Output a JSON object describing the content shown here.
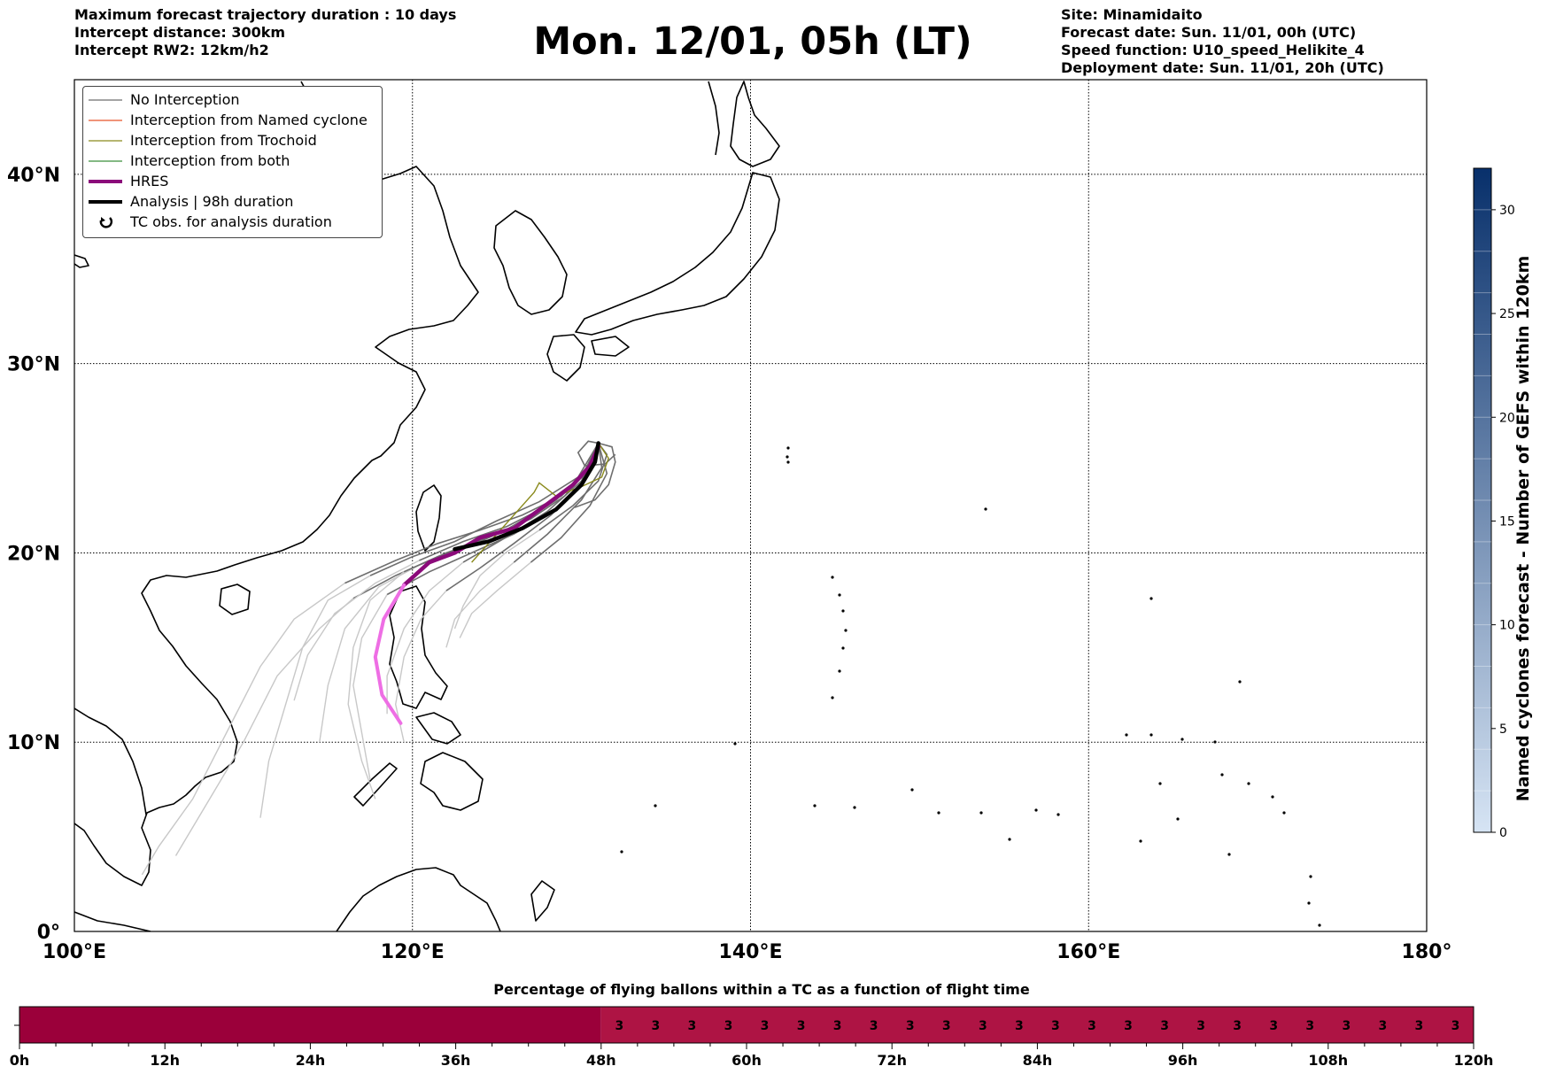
{
  "header": {
    "left": [
      "Maximum forecast trajectory duration : 10 days",
      "Intercept distance: 300km",
      "Intercept RW2: 12km/h2"
    ],
    "title": "Mon. 12/01, 05h (LT)",
    "right": [
      "Site: Minamidaito",
      "Forecast date: Sun. 11/01, 00h (UTC)",
      "Speed function: U10_speed_Helikite_4",
      "Deployment date: Sun. 11/01, 20h (UTC)"
    ]
  },
  "map": {
    "lon_range": [
      100,
      180
    ],
    "lat_range": [
      0,
      45
    ],
    "lon_ticks": [
      "100°E",
      "120°E",
      "140°E",
      "160°E",
      "180°"
    ],
    "lat_ticks": [
      "0°",
      "10°N",
      "20°N",
      "30°N",
      "40°N"
    ],
    "lon_tick_values": [
      100,
      120,
      140,
      160,
      180
    ],
    "lat_tick_values": [
      0,
      10,
      20,
      30,
      40
    ],
    "grid": "dotted"
  },
  "legend": {
    "placement": "top-left",
    "items": [
      {
        "label": "No Interception",
        "color": "#6e6e6e",
        "style": "thin-line"
      },
      {
        "label": "Interception from Named cyclone",
        "color": "#e8552a",
        "style": "thin-line"
      },
      {
        "label": "Interception from Trochoid",
        "color": "#8a8a1c",
        "style": "thin-line"
      },
      {
        "label": "Interception from both",
        "color": "#3a8f3a",
        "style": "thin-line"
      },
      {
        "label": "HRES",
        "color": "#8b0a7a",
        "style": "thick-line"
      },
      {
        "label": "Analysis | 98h duration",
        "color": "#000000",
        "style": "thick-line"
      },
      {
        "label": "TC obs. for analysis duration",
        "color": "#000000",
        "style": "cyclone-symbol"
      }
    ]
  },
  "colorbar": {
    "label": "Named cyclones forecast - Number of GEFS within 120km",
    "ticks": [
      "0",
      "5",
      "10",
      "15",
      "20",
      "25",
      "30"
    ],
    "tick_values": [
      0,
      5,
      10,
      15,
      20,
      25,
      30
    ],
    "min": 0,
    "max": 32,
    "color_low": "#d6e4f4",
    "color_high": "#08306b"
  },
  "chart_data": {
    "type": "line",
    "series": [
      {
        "name": "HRES",
        "color": "#8b0a7a",
        "points": [
          [
            131.0,
            25.6
          ],
          [
            130.5,
            24.6
          ],
          [
            129.5,
            23.6
          ],
          [
            128.0,
            22.6
          ],
          [
            126.0,
            21.3
          ],
          [
            124.0,
            20.8
          ],
          [
            122.5,
            20.0
          ],
          [
            121.0,
            19.5
          ],
          [
            119.5,
            18.3
          ],
          [
            118.3,
            16.5
          ],
          [
            117.8,
            14.5
          ],
          [
            118.2,
            12.5
          ],
          [
            119.3,
            11.0
          ]
        ]
      },
      {
        "name": "Analysis | 98h duration",
        "color": "#000000",
        "points": [
          [
            131.0,
            25.8
          ],
          [
            130.8,
            24.8
          ],
          [
            130.0,
            23.6
          ],
          [
            128.5,
            22.3
          ],
          [
            126.5,
            21.3
          ],
          [
            124.5,
            20.6
          ],
          [
            122.5,
            20.2
          ]
        ]
      }
    ]
  },
  "timeline": {
    "title": "Percentage of flying ballons within a TC as a function of flight time",
    "tick_labels": [
      "0h",
      "12h",
      "24h",
      "36h",
      "48h",
      "60h",
      "72h",
      "84h",
      "96h",
      "108h",
      "120h"
    ],
    "tick_hours": [
      0,
      12,
      24,
      36,
      48,
      60,
      72,
      84,
      96,
      108,
      120
    ],
    "max_hours": 120,
    "dark_segment_end_hours": 48,
    "dark_color": "#9b003a",
    "light_color": "#ae1444",
    "cells_start_hours": 48,
    "cell_hours": 3,
    "cell_value": "3",
    "cell_count": 24
  }
}
